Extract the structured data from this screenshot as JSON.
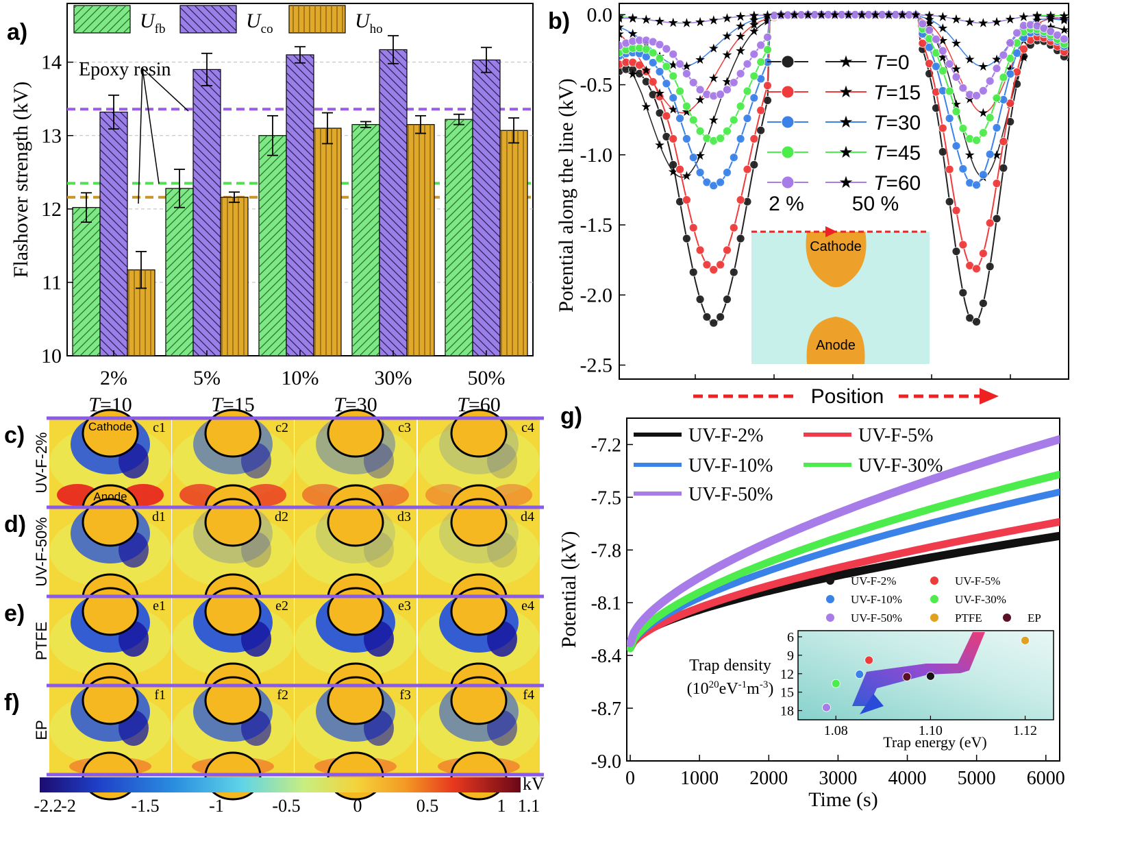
{
  "panels": {
    "a": {
      "label": "a)"
    },
    "b": {
      "label": "b)"
    },
    "g": {
      "label": "g)"
    }
  },
  "chart_data": [
    {
      "id": "a",
      "type": "bar",
      "ylabel": "Flashover strength (kV)",
      "categories": [
        "2%",
        "5%",
        "10%",
        "30%",
        "50%"
      ],
      "ylim": [
        10,
        14.8
      ],
      "yticks": [
        "10",
        "11",
        "12",
        "13",
        "14"
      ],
      "series": [
        {
          "name_main": "U",
          "name_sub": "fb",
          "color": "#7ee886",
          "pattern": "diag-fwd",
          "values": [
            12.02,
            12.28,
            13.0,
            13.15,
            13.22
          ],
          "errors": [
            0.2,
            0.26,
            0.27,
            0.04,
            0.07
          ]
        },
        {
          "name_main": "U",
          "name_sub": "co",
          "color": "#9b7fe8",
          "pattern": "diag-back",
          "values": [
            13.32,
            13.9,
            14.1,
            14.17,
            14.03
          ],
          "errors": [
            0.23,
            0.22,
            0.11,
            0.19,
            0.17
          ]
        },
        {
          "name_main": "U",
          "name_sub": "ho",
          "color": "#e0a92a",
          "pattern": "vertical",
          "values": [
            11.17,
            12.16,
            13.1,
            13.15,
            13.07
          ],
          "errors": [
            0.25,
            0.07,
            0.21,
            0.12,
            0.17
          ]
        }
      ],
      "reference_lines": [
        {
          "value": 13.36,
          "color": "#9b5de5"
        },
        {
          "value": 12.35,
          "color": "#55dd55"
        },
        {
          "value": 12.16,
          "color": "#c9952a"
        }
      ],
      "annotation": "Epoxy resin",
      "grid": "horizontal-dashed",
      "legend": "top"
    },
    {
      "id": "b",
      "type": "line",
      "ylabel": "Potential along the line (kV)",
      "xlabel": "Position",
      "ylim": [
        -2.6,
        0.08
      ],
      "yticks": [
        "0.0",
        "-0.5",
        "-1.0",
        "-1.5",
        "-2.0",
        "-2.5"
      ],
      "series": [
        {
          "T": "0",
          "color": "#222222",
          "min2": -2.2,
          "min50": -1.16,
          "edge2": -0.6,
          "edge50": -0.27
        },
        {
          "T": "15",
          "color": "#ef3b3b",
          "min2": -1.82,
          "min50": -0.7,
          "edge2": -0.53,
          "edge50": -0.06
        },
        {
          "T": "30",
          "color": "#3a82e8",
          "min2": -1.22,
          "min50": -0.37,
          "edge2": -0.45,
          "edge50": -0.1
        },
        {
          "T": "45",
          "color": "#4dec4d",
          "min2": -0.9,
          "min50": -0.06,
          "edge2": -0.42,
          "edge50": -0.02
        },
        {
          "T": "60",
          "color": "#a77be8",
          "min2": -0.58,
          "min50": -0.06,
          "edge2": -0.35,
          "edge50": -0.07
        }
      ],
      "legend_T": "T",
      "legend_left": "2 %",
      "legend_right": "50 %",
      "inset_labels": {
        "cathode": "Cathode",
        "anode": "Anode"
      },
      "legend": "top-center"
    },
    {
      "id": "g",
      "type": "line",
      "xlabel": "Time (s)",
      "ylabel": "Potential (kV)",
      "xlim": [
        -50,
        6200
      ],
      "ylim": [
        -9.0,
        -7.05
      ],
      "xticks": [
        "0",
        "1000",
        "2000",
        "3000",
        "4000",
        "5000",
        "6000"
      ],
      "yticks": [
        "-7.2",
        "-7.5",
        "-7.8",
        "-8.1",
        "-8.4",
        "-8.7",
        "-9.0"
      ],
      "series": [
        {
          "name": "UV-F-2%",
          "color": "#111111",
          "start": -8.34,
          "end": -7.72,
          "width": 12
        },
        {
          "name": "UV-F-5%",
          "color": "#ef3b4b",
          "start": -8.36,
          "end": -7.64,
          "width": 11
        },
        {
          "name": "UV-F-10%",
          "color": "#3a82e8",
          "start": -8.36,
          "end": -7.47,
          "width": 10
        },
        {
          "name": "UV-F-30%",
          "color": "#4dec4d",
          "start": -8.36,
          "end": -7.37,
          "width": 11
        },
        {
          "name": "UV-F-50%",
          "color": "#a77be8",
          "start": -8.33,
          "end": -7.17,
          "width": 12
        }
      ],
      "inset": {
        "xlabel": "Trap energy (eV)",
        "ylabel_line1": "Trap density",
        "ylabel_line2_a": "(10",
        "ylabel_line2_sup1": "20",
        "ylabel_line2_b": "eV",
        "ylabel_line2_sup2": "-1",
        "ylabel_line2_c": "m",
        "ylabel_line2_sup3": "-3",
        "ylabel_line2_d": ")",
        "xticks": [
          "1.08",
          "1.10",
          "1.12"
        ],
        "yticks": [
          "6",
          "9",
          "12",
          "15",
          "18"
        ],
        "points": [
          {
            "name": "UV-F-2%",
            "color": "#151515",
            "x": 1.1,
            "y": 12.4
          },
          {
            "name": "UV-F-5%",
            "color": "#ef3b3b",
            "x": 1.087,
            "y": 9.8
          },
          {
            "name": "UV-F-10%",
            "color": "#3a82e8",
            "x": 1.085,
            "y": 12.1
          },
          {
            "name": "UV-F-30%",
            "color": "#4dec4d",
            "x": 1.08,
            "y": 13.6
          },
          {
            "name": "UV-F-50%",
            "color": "#a77be8",
            "x": 1.078,
            "y": 17.5
          },
          {
            "name": "PTFE",
            "color": "#e0a020",
            "x": 1.12,
            "y": 6.6
          },
          {
            "name": "EP",
            "color": "#5a1025",
            "x": 1.095,
            "y": 12.5
          }
        ]
      },
      "legend": "top-left"
    }
  ],
  "field_maps": {
    "columns": [
      "10",
      "15",
      "30",
      "60"
    ],
    "column_prefix": "T=",
    "rows": [
      {
        "tag": "c)",
        "name": "UV-F-2%",
        "cells": [
          "c1",
          "c2",
          "c3",
          "c4"
        ]
      },
      {
        "tag": "d)",
        "name": "UV-F-50%",
        "cells": [
          "d1",
          "d2",
          "d3",
          "d4"
        ]
      },
      {
        "tag": "e)",
        "name": "PTFE",
        "cells": [
          "e1",
          "e2",
          "e3",
          "e4"
        ]
      },
      {
        "tag": "f)",
        "name": "EP",
        "cells": [
          "f1",
          "f2",
          "f3",
          "f4"
        ]
      }
    ],
    "cathode_label": "Cathode",
    "anode_label": "Anode",
    "colorbar_unit": "kV",
    "colorbar_ticks": [
      "-2.2",
      "-2",
      "-1.5",
      "-1",
      "-0.5",
      "0",
      "0.5",
      "1",
      "1.1"
    ]
  }
}
